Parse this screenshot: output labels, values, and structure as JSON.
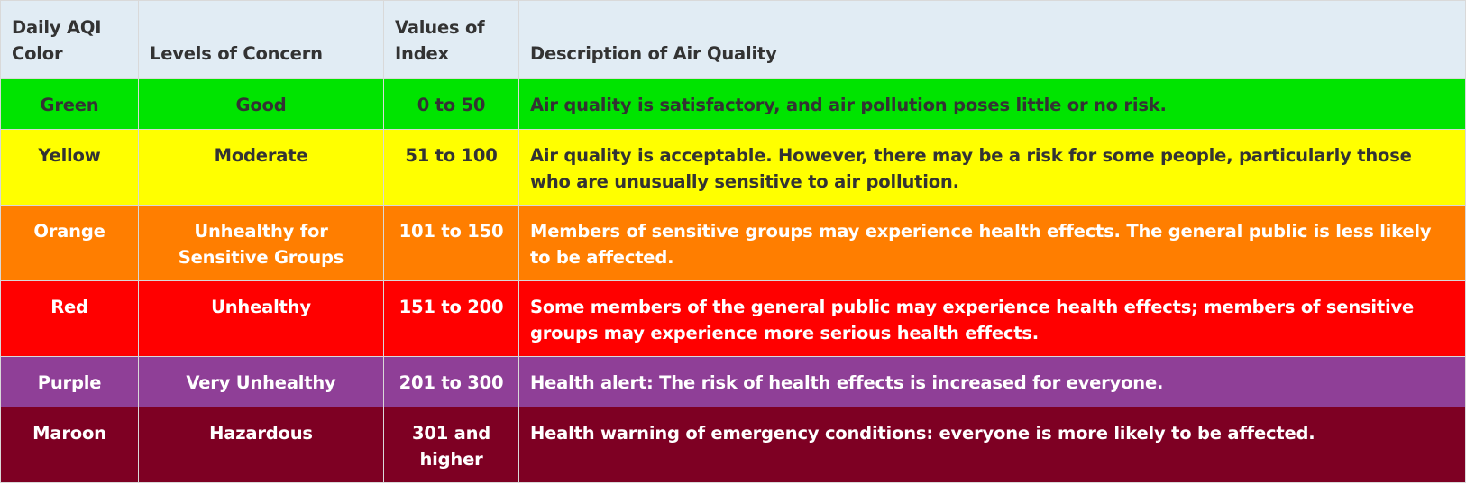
{
  "header": {
    "color": "Daily AQI Color",
    "concern": "Levels of Concern",
    "values": "Values of Index",
    "description": "Description of Air Quality"
  },
  "rows": [
    {
      "color": "Green",
      "concern": "Good",
      "values": "0 to 50",
      "description": "Air quality is satisfactory, and air pollution poses little or no risk.",
      "bg": "#00e400",
      "fg": "#333333"
    },
    {
      "color": "Yellow",
      "concern": "Moderate",
      "values": "51 to 100",
      "description": "Air quality is acceptable. However, there may be a risk for some people, particularly those who are unusually sensitive to air pollution.",
      "bg": "#ffff00",
      "fg": "#333333"
    },
    {
      "color": "Orange",
      "concern": "Unhealthy for Sensitive Groups",
      "values": "101 to 150",
      "description": "Members of sensitive groups may experience health effects. The general public is less likely to be affected.",
      "bg": "#ff7e00",
      "fg": "#ffffff"
    },
    {
      "color": "Red",
      "concern": "Unhealthy",
      "values": "151 to 200",
      "description": "Some members of the general public may experience health effects; members of sensitive groups may experience more serious health effects.",
      "bg": "#ff0000",
      "fg": "#ffffff"
    },
    {
      "color": "Purple",
      "concern": "Very Unhealthy",
      "values": "201 to 300",
      "description": "Health alert: The risk of health effects is increased for everyone.",
      "bg": "#8f3f97",
      "fg": "#ffffff"
    },
    {
      "color": "Maroon",
      "concern": "Hazardous",
      "values": "301 and higher",
      "description": "Health warning of emergency conditions: everyone is more likely to be affected.",
      "bg": "#7e0023",
      "fg": "#ffffff"
    }
  ]
}
